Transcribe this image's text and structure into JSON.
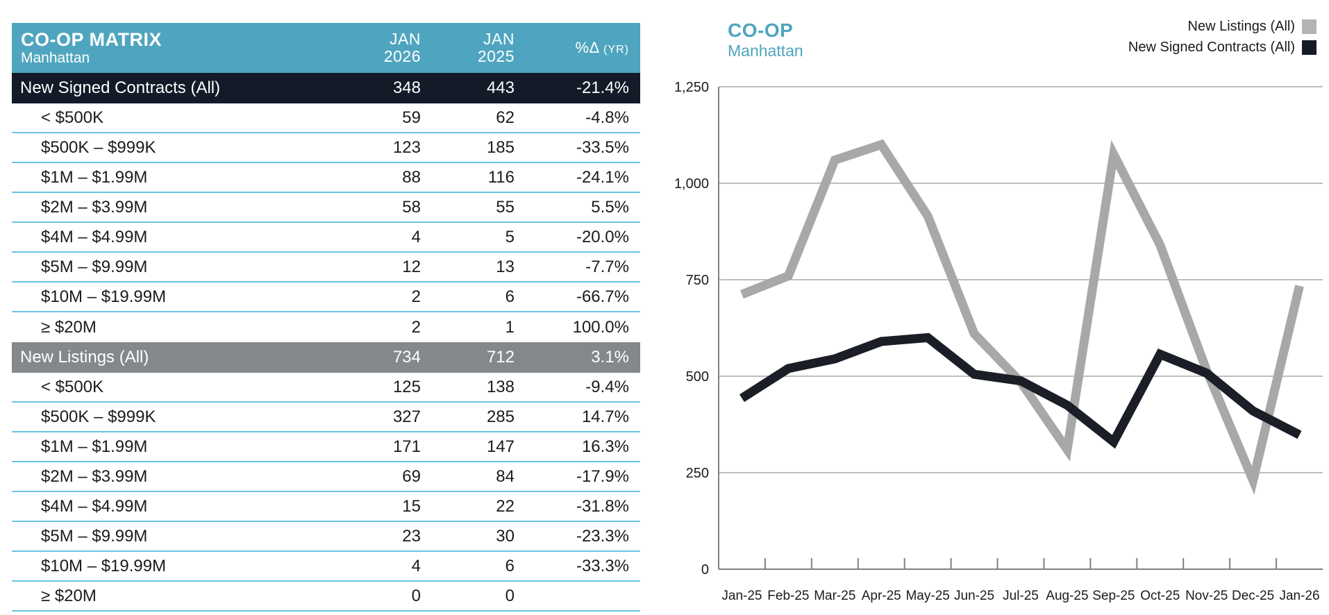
{
  "colors": {
    "accent_teal": "#4fa5bf",
    "section_dark_navy": "#131a28",
    "section_gray": "#85888b",
    "divider_blue": "#69c4e2",
    "gridline": "#a9a9a9",
    "axis": "#808080"
  },
  "table": {
    "title": "CO-OP MATRIX",
    "subtitle": "Manhattan",
    "col1_header": "JAN\n2026",
    "col2_header": "JAN\n2025",
    "pct_header_symbol": "%Δ ",
    "pct_header_suffix": "(YR)",
    "rows": [
      {
        "kind": "section-dark",
        "label": "New Signed Contracts (All)",
        "v26": "348",
        "v25": "443",
        "pct": "-21.4%"
      },
      {
        "kind": "data",
        "label": "< $500K",
        "v26": "59",
        "v25": "62",
        "pct": "-4.8%"
      },
      {
        "kind": "data",
        "label": "$500K – $999K",
        "v26": "123",
        "v25": "185",
        "pct": "-33.5%"
      },
      {
        "kind": "data",
        "label": "$1M – $1.99M",
        "v26": "88",
        "v25": "116",
        "pct": "-24.1%"
      },
      {
        "kind": "data",
        "label": "$2M – $3.99M",
        "v26": "58",
        "v25": "55",
        "pct": "5.5%"
      },
      {
        "kind": "data",
        "label": "$4M – $4.99M",
        "v26": "4",
        "v25": "5",
        "pct": "-20.0%"
      },
      {
        "kind": "data",
        "label": "$5M – $9.99M",
        "v26": "12",
        "v25": "13",
        "pct": "-7.7%"
      },
      {
        "kind": "data",
        "label": "$10M – $19.99M",
        "v26": "2",
        "v25": "6",
        "pct": "-66.7%"
      },
      {
        "kind": "data",
        "label": "≥ $20M",
        "v26": "2",
        "v25": "1",
        "pct": "100.0%"
      },
      {
        "kind": "section-gray",
        "label": "New Listings (All)",
        "v26": "734",
        "v25": "712",
        "pct": "3.1%"
      },
      {
        "kind": "data",
        "label": "< $500K",
        "v26": "125",
        "v25": "138",
        "pct": "-9.4%"
      },
      {
        "kind": "data",
        "label": "$500K – $999K",
        "v26": "327",
        "v25": "285",
        "pct": "14.7%"
      },
      {
        "kind": "data",
        "label": "$1M – $1.99M",
        "v26": "171",
        "v25": "147",
        "pct": "16.3%"
      },
      {
        "kind": "data",
        "label": "$2M – $3.99M",
        "v26": "69",
        "v25": "84",
        "pct": "-17.9%"
      },
      {
        "kind": "data",
        "label": "$4M – $4.99M",
        "v26": "15",
        "v25": "22",
        "pct": "-31.8%"
      },
      {
        "kind": "data",
        "label": "$5M – $9.99M",
        "v26": "23",
        "v25": "30",
        "pct": "-23.3%"
      },
      {
        "kind": "data",
        "label": "$10M – $19.99M",
        "v26": "4",
        "v25": "6",
        "pct": "-33.3%"
      },
      {
        "kind": "data",
        "label": "≥ $20M",
        "v26": "0",
        "v25": "0",
        "pct": ""
      }
    ]
  },
  "chart_data": {
    "type": "line",
    "title": "CO-OP",
    "subtitle": "Manhattan",
    "x": [
      "Jan-25",
      "Feb-25",
      "Mar-25",
      "Apr-25",
      "May-25",
      "Jun-25",
      "Jul-25",
      "Aug-25",
      "Sep-25",
      "Oct-25",
      "Nov-25",
      "Dec-25",
      "Jan-26"
    ],
    "series": [
      {
        "name": "New Listings (All)",
        "color": "#a8a8a8",
        "swatch": "#b3b3b3",
        "values": [
          712,
          760,
          1060,
          1100,
          915,
          610,
          485,
          310,
          1075,
          840,
          515,
          230,
          734
        ]
      },
      {
        "name": "New Signed Contracts (All)",
        "color": "#1b1e27",
        "swatch": "#151a24",
        "values": [
          443,
          520,
          545,
          590,
          600,
          505,
          488,
          425,
          330,
          557,
          508,
          410,
          348
        ]
      }
    ],
    "ylim": [
      0,
      1250
    ],
    "yticks": [
      0,
      250,
      500,
      750,
      1000,
      1250
    ],
    "ytick_labels": [
      "0",
      "250",
      "500",
      "750",
      "1,000",
      "1,250"
    ],
    "legend_position": "top-right",
    "grid": "horizontal"
  }
}
